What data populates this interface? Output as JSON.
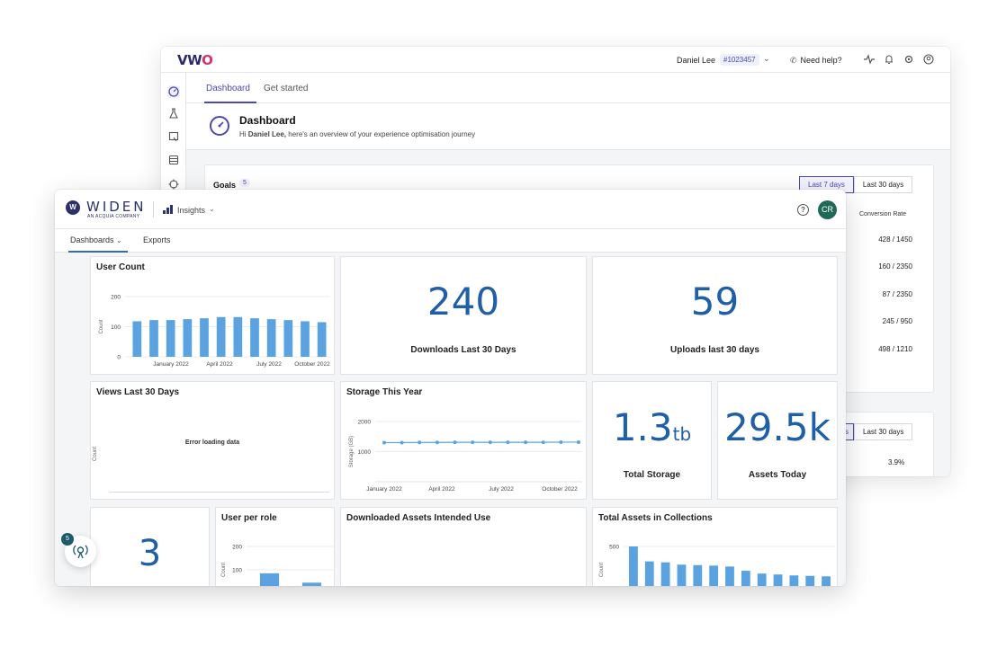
{
  "vwo": {
    "logo": {
      "v": "V",
      "w": "W",
      "o": "O"
    },
    "user_name": "Daniel Lee",
    "account_id": "#1023457",
    "help_label": "Need help?",
    "tabs": [
      {
        "label": "Dashboard"
      },
      {
        "label": "Get started"
      }
    ],
    "header": {
      "title": "Dashboard",
      "greeting_prefix": "Hi ",
      "greeting_name": "Daniel Lee,",
      "greeting_suffix": " here's an overview of your experience optimisation journey"
    },
    "goals": {
      "label": "Goals",
      "count": "5",
      "ranges": [
        "Last 7 days",
        "Last 30 days"
      ],
      "column_header": "Conversion Rate",
      "rates": [
        "428 / 1450",
        "160 / 2350",
        "87 / 2350",
        "245 / 950",
        "498 / 1210"
      ]
    },
    "second_card": {
      "range_partial": "s",
      "range_label": "Last 30 days",
      "percent": "3.9%"
    }
  },
  "widen": {
    "logo_letter": "W",
    "logo_text": "WIDEN",
    "logo_sub": "AN ACQUIA COMPANY",
    "app_switcher": "Insights",
    "avatar_initials": "CR",
    "help_symbol": "?",
    "nav": [
      {
        "label": "Dashboards"
      },
      {
        "label": "Exports"
      }
    ],
    "panels": {
      "user_count": {
        "title": "User Count"
      },
      "downloads": {
        "value": "240",
        "label": "Downloads Last 30 Days"
      },
      "uploads": {
        "value": "59",
        "label": "Uploads last 30 days"
      },
      "views": {
        "title": "Views Last 30 Days",
        "error": "Error loading data",
        "ylabel": "Count"
      },
      "storage_year": {
        "title": "Storage This Year"
      },
      "total_storage": {
        "value": "1.3",
        "unit": "tb",
        "label": "Total Storage"
      },
      "assets_today": {
        "value": "29.5k",
        "label": "Assets Today"
      },
      "third_metric": {
        "value": "3"
      },
      "user_per_role": {
        "title": "User per role"
      },
      "intended_use": {
        "title": "Downloaded Assets Intended Use"
      },
      "collections": {
        "title": "Total Assets in Collections"
      }
    },
    "floating_badge_count": "5"
  },
  "chart_data": [
    {
      "type": "bar",
      "title": "User Count",
      "ylabel": "Count",
      "ylim": [
        0,
        200
      ],
      "yticks": [
        "0",
        "100",
        "200"
      ],
      "xtick_labels": [
        "January 2022",
        "April 2022",
        "July 2022",
        "October 2022"
      ],
      "values": [
        118,
        122,
        122,
        125,
        128,
        132,
        132,
        128,
        125,
        122,
        118,
        115
      ],
      "grid": true,
      "color": "#5ba3e0"
    },
    {
      "type": "line",
      "title": "Storage This Year",
      "ylabel": "Storage (GB)",
      "ylim": [
        0,
        2000
      ],
      "yticks": [
        "1000",
        "2000"
      ],
      "xtick_labels": [
        "January 2022",
        "April 2022",
        "July 2022",
        "October 2022"
      ],
      "values": [
        1300,
        1300,
        1305,
        1305,
        1310,
        1310,
        1310,
        1310,
        1310,
        1310,
        1315,
        1315
      ],
      "grid": true,
      "color": "#5ba3e0"
    },
    {
      "type": "bar",
      "title": "User per role",
      "ylabel": "Count",
      "ylim": [
        0,
        200
      ],
      "yticks": [
        "100",
        "200"
      ],
      "values": [
        85,
        45
      ],
      "grid": true,
      "color": "#5ba3e0"
    },
    {
      "type": "bar",
      "title": "Total Assets in Collections",
      "ylabel": "Count",
      "ylim": [
        0,
        500
      ],
      "yticks": [
        "500"
      ],
      "values": [
        500,
        340,
        330,
        305,
        300,
        295,
        285,
        240,
        210,
        200,
        190,
        185,
        180
      ],
      "grid": true,
      "color": "#5ba3e0"
    }
  ]
}
